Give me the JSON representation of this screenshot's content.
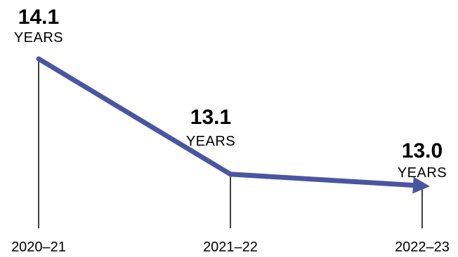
{
  "chart_data": {
    "type": "line",
    "categories": [
      "2020–21",
      "2021–22",
      "2022–23"
    ],
    "series": [
      {
        "values": [
          14.1,
          13.1,
          13.0
        ],
        "labels": [
          "14.1",
          "13.1",
          "13.0"
        ],
        "unit_labels": [
          "YEARS",
          "YEARS",
          "YEARS"
        ]
      }
    ],
    "title": "",
    "xlabel": "",
    "ylabel": "",
    "ylim": [
      12.85,
      14.1
    ],
    "grid": false,
    "legend": "none",
    "colors": {
      "line": "#4A55A2",
      "ticks": "#000000",
      "text": "#000000"
    }
  }
}
